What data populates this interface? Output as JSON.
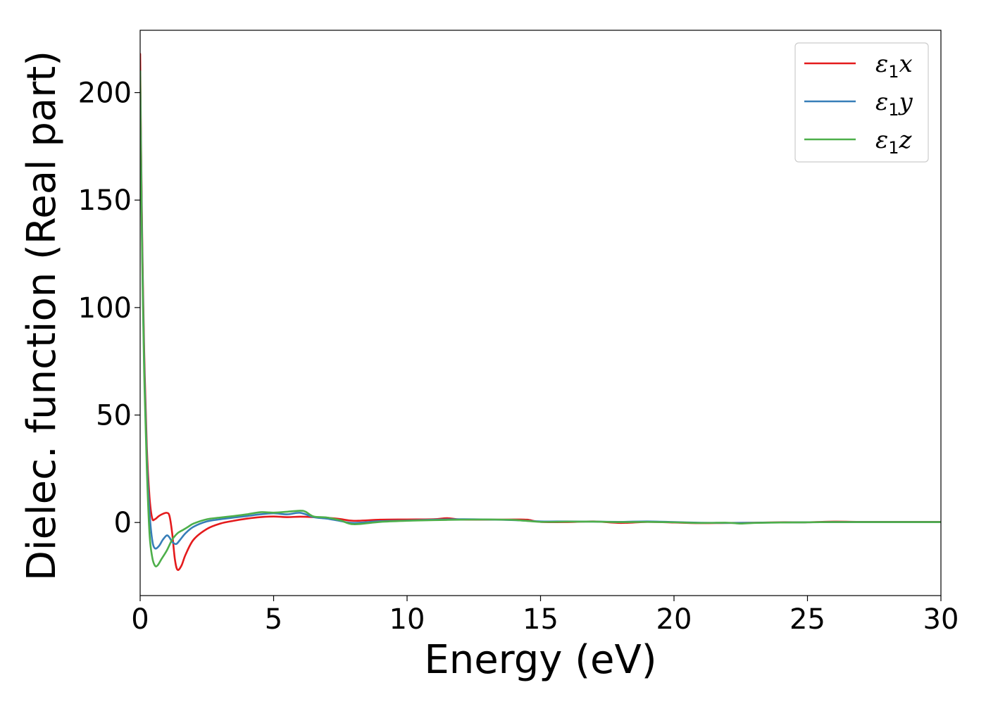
{
  "chart_data": {
    "type": "line",
    "xlabel": "Energy (eV)",
    "ylabel": "Dielec. function (Real part)",
    "xlim": [
      0,
      30
    ],
    "ylim": [
      -34,
      229
    ],
    "xticks": [
      0,
      5,
      10,
      15,
      20,
      25,
      30
    ],
    "yticks": [
      0,
      50,
      100,
      150,
      200
    ],
    "grid": false,
    "legend_position": "top-right",
    "series": [
      {
        "name": "ε1x",
        "legend": {
          "main": "ε",
          "sub": "1",
          "axis": "x"
        },
        "color": "#e41a1c",
        "x": [
          0,
          0.03,
          0.08,
          0.15,
          0.25,
          0.35,
          0.45,
          0.55,
          0.7,
          0.85,
          1.0,
          1.1,
          1.2,
          1.3,
          1.4,
          1.55,
          1.7,
          2.0,
          2.5,
          3.0,
          3.5,
          4.0,
          4.5,
          5.0,
          5.5,
          6.0,
          6.5,
          7.0,
          7.5,
          8.0,
          9.0,
          10.0,
          11.0,
          11.5,
          12.0,
          13.0,
          14.0,
          14.5,
          15.0,
          16.0,
          17.0,
          18.0,
          19.0,
          20.0,
          21.0,
          22.0,
          23.0,
          24.0,
          25.0,
          26.0,
          27.0,
          28.0,
          29.0,
          30.0
        ],
        "y": [
          218,
          180,
          130,
          80,
          35,
          12,
          2,
          1.5,
          3,
          4,
          4.5,
          3,
          -5,
          -17,
          -22,
          -20,
          -15,
          -8,
          -3,
          -0.5,
          0.8,
          1.8,
          2.5,
          2.8,
          2.5,
          2.7,
          2.5,
          2.2,
          1.6,
          0.8,
          1.3,
          1.4,
          1.5,
          2,
          1.4,
          1.3,
          1.4,
          1.3,
          0.3,
          0.2,
          0.5,
          -0.2,
          0.3,
          0,
          -0.3,
          -0.2,
          -0.1,
          0.1,
          0.1,
          0.4,
          0.3,
          0.3,
          0.3,
          0.3
        ]
      },
      {
        "name": "ε1y",
        "legend": {
          "main": "ε",
          "sub": "1",
          "axis": "y"
        },
        "color": "#377eb8",
        "x": [
          0,
          0.03,
          0.08,
          0.15,
          0.25,
          0.35,
          0.45,
          0.55,
          0.7,
          0.85,
          1.0,
          1.1,
          1.2,
          1.35,
          1.5,
          1.7,
          2.0,
          2.5,
          3.0,
          3.5,
          4.0,
          4.5,
          5.0,
          5.5,
          6.0,
          6.5,
          7.0,
          7.5,
          8.0,
          9.0,
          10.0,
          11.0,
          12.0,
          13.0,
          14.0,
          15.0,
          16.0,
          17.0,
          18.0,
          19.0,
          20.0,
          21.0,
          22.0,
          23.0,
          24.0,
          25.0,
          26.0,
          27.0,
          28.0,
          29.0,
          30.0
        ],
        "y": [
          210,
          175,
          125,
          75,
          30,
          5,
          -8,
          -12,
          -11,
          -8,
          -6,
          -7,
          -9,
          -10,
          -8,
          -5,
          -2,
          0.5,
          1.5,
          2.3,
          3,
          3.8,
          4.3,
          3.8,
          4.5,
          2.5,
          1.8,
          0.7,
          -0.2,
          0.6,
          0.9,
          1.3,
          1.5,
          1.4,
          1.1,
          0.5,
          0.5,
          0.4,
          0.3,
          0.5,
          0.2,
          -0.1,
          -0.2,
          -0.1,
          0,
          0.1,
          0.2,
          0.2,
          0.2,
          0.2,
          0.2
        ]
      },
      {
        "name": "ε1z",
        "legend": {
          "main": "ε",
          "sub": "1",
          "axis": "z"
        },
        "color": "#4daf4a",
        "x": [
          0,
          0.03,
          0.08,
          0.15,
          0.25,
          0.35,
          0.45,
          0.55,
          0.65,
          0.8,
          1.0,
          1.2,
          1.4,
          1.6,
          1.8,
          2.0,
          2.5,
          3.0,
          3.5,
          4.0,
          4.5,
          5.0,
          5.5,
          6.0,
          6.2,
          6.5,
          7.0,
          7.5,
          8.0,
          9.0,
          10.0,
          11.0,
          12.0,
          13.0,
          14.0,
          15.0,
          16.0,
          17.0,
          18.0,
          19.0,
          20.0,
          21.0,
          22.0,
          22.5,
          23.0,
          24.0,
          25.0,
          26.0,
          27.0,
          28.0,
          29.0,
          30.0
        ],
        "y": [
          210,
          170,
          120,
          70,
          25,
          -5,
          -16,
          -20,
          -20,
          -17,
          -13,
          -8,
          -5,
          -3.5,
          -2,
          -0.5,
          1.5,
          2.3,
          3,
          3.8,
          4.8,
          4.6,
          5,
          5.5,
          5,
          2.8,
          2.3,
          1,
          -0.8,
          0.3,
          0.8,
          1.1,
          1.3,
          1.4,
          1.2,
          0.3,
          0.4,
          0.4,
          0.2,
          0.3,
          0.1,
          -0.2,
          -0.1,
          -0.5,
          -0.2,
          0,
          0.1,
          0.2,
          0.2,
          0.2,
          0.2,
          0.2
        ]
      }
    ]
  }
}
